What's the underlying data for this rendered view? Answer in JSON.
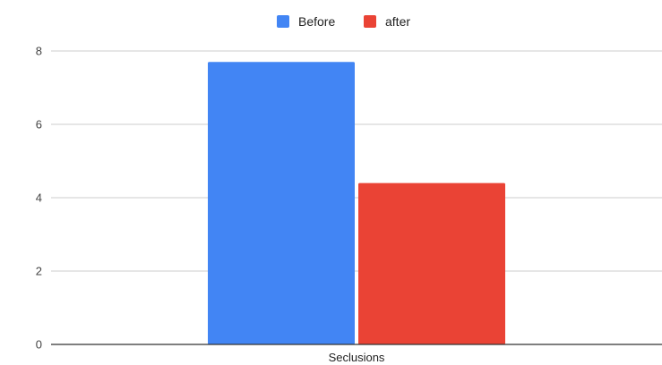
{
  "chart_data": {
    "type": "bar",
    "title": "",
    "xlabel": "",
    "ylabel": "",
    "categories": [
      "Seclusions"
    ],
    "series": [
      {
        "name": "Before",
        "values": [
          7.7
        ],
        "color": "#4285f4"
      },
      {
        "name": "after",
        "values": [
          4.4
        ],
        "color": "#ea4335"
      }
    ],
    "ylim": [
      0,
      8
    ],
    "yticks": [
      "0",
      "2",
      "4",
      "6",
      "8"
    ],
    "grid": true,
    "legend_position": "top-center",
    "gridline_color": "#cccccc",
    "axis_color": "#333333"
  }
}
